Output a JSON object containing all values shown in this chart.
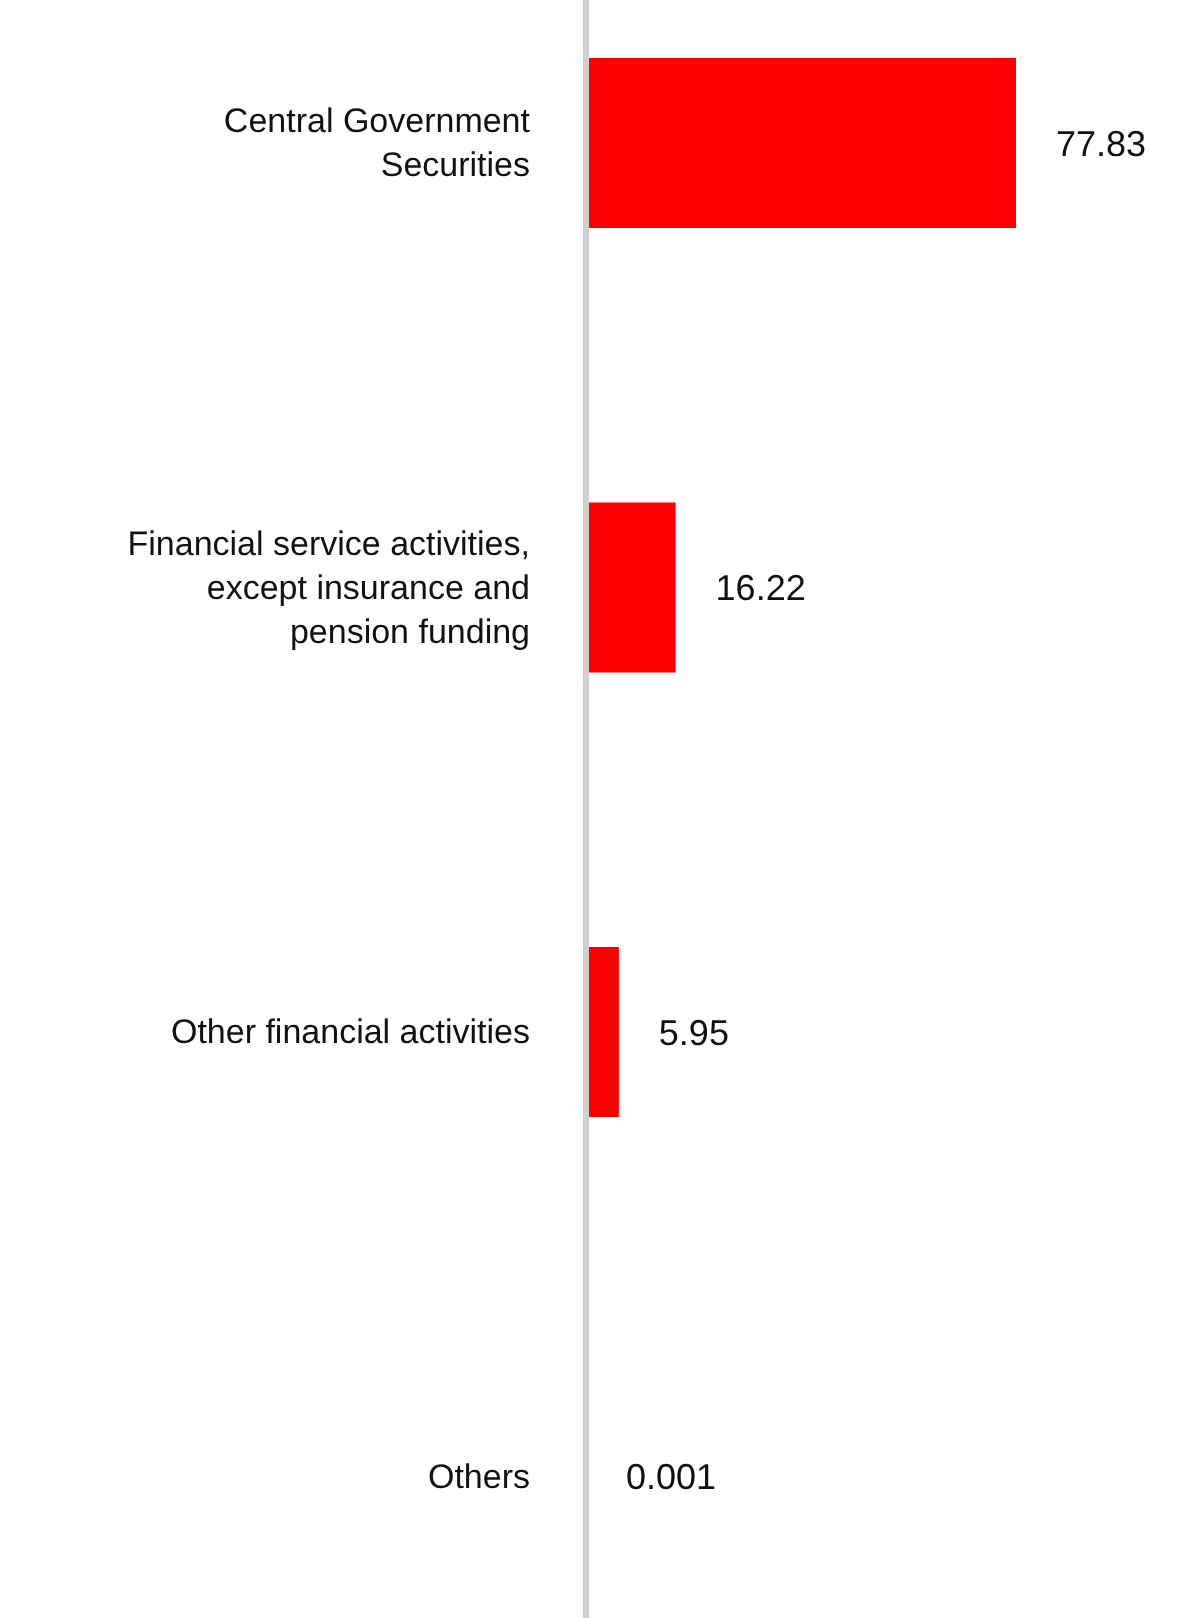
{
  "chart_data": {
    "type": "bar",
    "orientation": "horizontal",
    "categories": [
      "Central Government\nSecurities",
      "Financial service activities,\nexcept insurance and\npension funding",
      "Other financial activities",
      "Others"
    ],
    "values": [
      77.83,
      16.22,
      5.95,
      0.001
    ],
    "color": "#ff0000",
    "data_labels": true
  }
}
